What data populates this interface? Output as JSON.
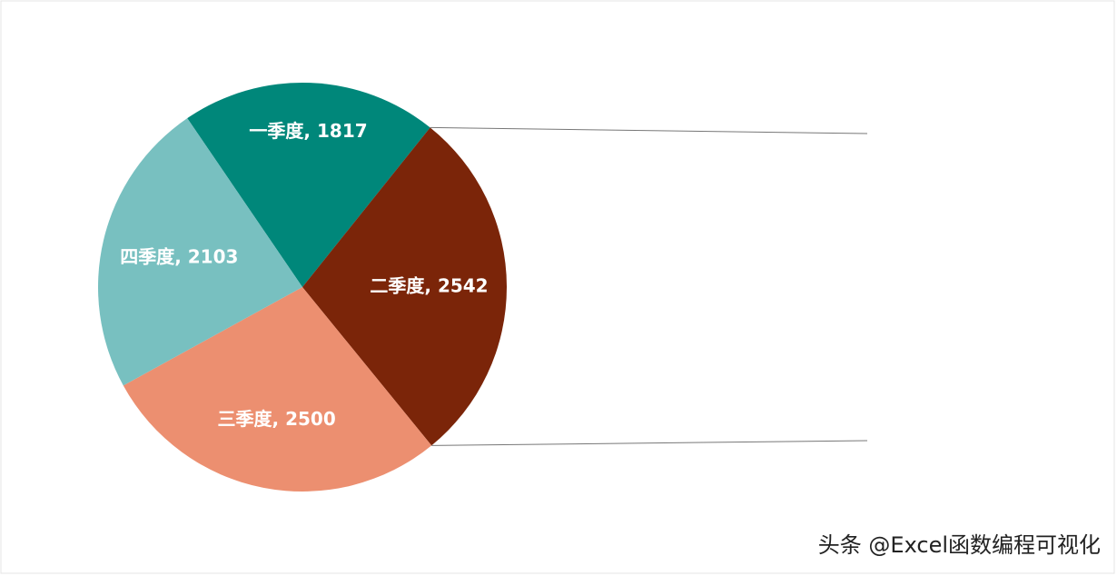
{
  "chart_data": {
    "type": "pie",
    "categories": [
      "一季度",
      "二季度",
      "三季度",
      "四季度"
    ],
    "values": [
      1817,
      2542,
      2500,
      2103
    ],
    "colors": [
      "#00877a",
      "#7b2509",
      "#ec8f70",
      "#78c0c0"
    ],
    "label_separator": ", "
  },
  "watermark": "头条 @Excel函数编程可视化"
}
